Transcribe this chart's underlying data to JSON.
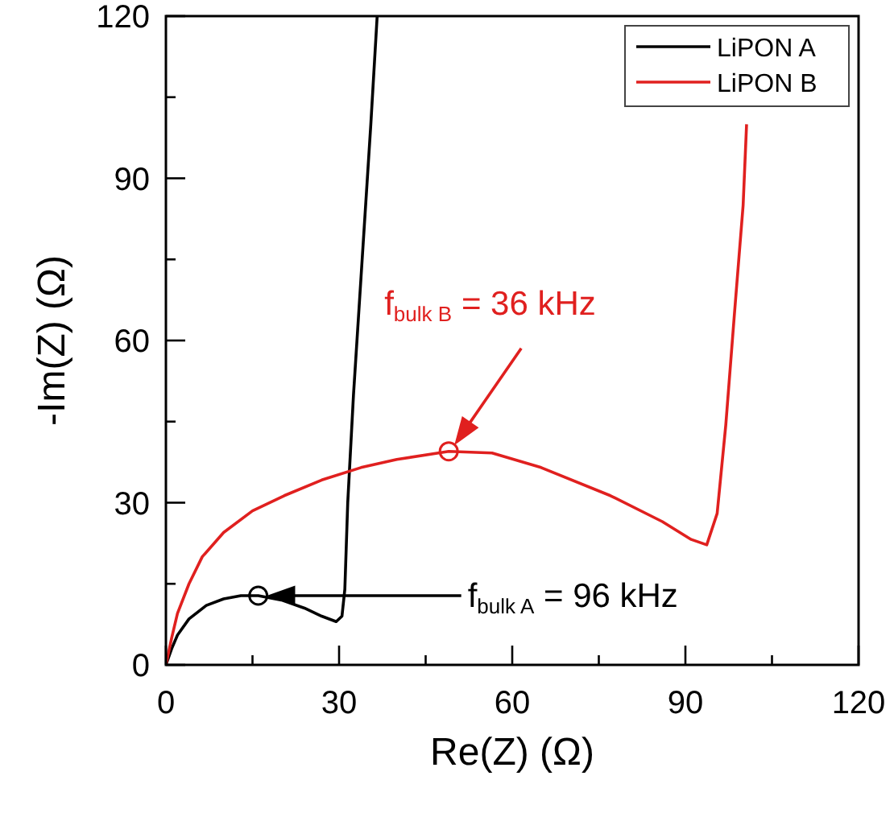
{
  "chart_data": {
    "type": "line",
    "xlabel": "Re(Z) (Ω)",
    "ylabel": "-Im(Z) (Ω)",
    "xlim": [
      0,
      120
    ],
    "ylim": [
      0,
      120
    ],
    "xticks": [
      0,
      {
        "value": 15,
        "label": null
      },
      30,
      {
        "value": 45,
        "label": null
      },
      60,
      {
        "value": 75,
        "label": null
      },
      90,
      {
        "value": 105,
        "label": null
      },
      120
    ],
    "yticks": [
      0,
      {
        "value": 15,
        "label": null
      },
      30,
      {
        "value": 45,
        "label": null
      },
      60,
      {
        "value": 75,
        "label": null
      },
      90,
      {
        "value": 105,
        "label": null
      },
      120
    ],
    "grid": false,
    "legend": "top right",
    "marker": "none",
    "line_style": "solid",
    "series": [
      {
        "name": "LiPON A",
        "color": "#000000",
        "x": [
          0,
          1,
          2,
          4,
          7,
          10,
          13,
          16,
          20,
          24,
          27,
          29.5,
          30.5,
          31,
          31.5,
          32.5,
          34,
          35.5,
          36.6
        ],
        "values": [
          0,
          3,
          5.5,
          8.5,
          11,
          12.2,
          12.8,
          12.8,
          12,
          10.5,
          9,
          8,
          9,
          14,
          30,
          50,
          75,
          100,
          120
        ]
      },
      {
        "name": "LiPON B",
        "color": "#e0201f",
        "x": [
          0,
          1,
          2,
          4,
          6.3,
          10,
          15,
          20.5,
          27,
          33.8,
          40,
          49,
          56.5,
          65,
          77,
          86,
          91,
          93.7,
          95.5,
          97,
          98.5,
          100,
          100.6
        ],
        "values": [
          0,
          5,
          9.5,
          15,
          20,
          24.5,
          28.5,
          31.3,
          34.2,
          36.5,
          38,
          39.5,
          39.2,
          36.5,
          31.3,
          26.5,
          23.2,
          22.2,
          28,
          44.4,
          65,
          85,
          100
        ]
      },
      {
        "type": "scatter",
        "x": [
          16,
          49
        ],
        "values": [
          12.8,
          39.5
        ],
        "colors": [
          "#000000",
          "#e0201f"
        ],
        "marker": "circle"
      }
    ],
    "annotations": [
      "f$_{bulk A}$ = 96 kHz",
      "f$_{bulk B}$ = 36 kHz"
    ]
  }
}
